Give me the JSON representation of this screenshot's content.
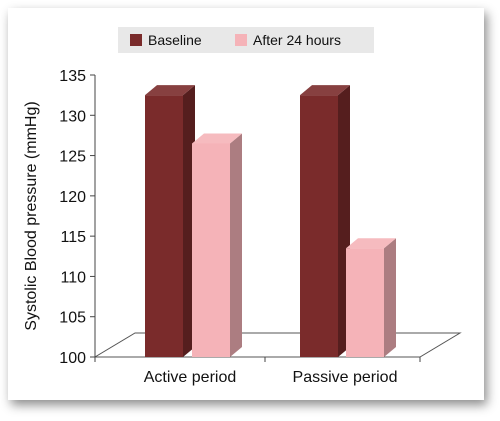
{
  "chart_data": {
    "type": "bar",
    "title": "",
    "xlabel": "",
    "ylabel": "Systolic Blood pressure (mmHg)",
    "categories": [
      "Active period",
      "Passive period"
    ],
    "series": [
      {
        "name": "Baseline",
        "values": [
          132.5,
          132.5
        ],
        "color": "#7a2b2b"
      },
      {
        "name": "After 24 hours",
        "values": [
          126.5,
          113.5
        ],
        "color": "#f5b3b8"
      }
    ],
    "ylim": [
      100,
      135
    ],
    "yticks": [
      100,
      105,
      110,
      115,
      120,
      125,
      130,
      135
    ],
    "legend": "top-center",
    "grid": false,
    "three_d": true
  }
}
